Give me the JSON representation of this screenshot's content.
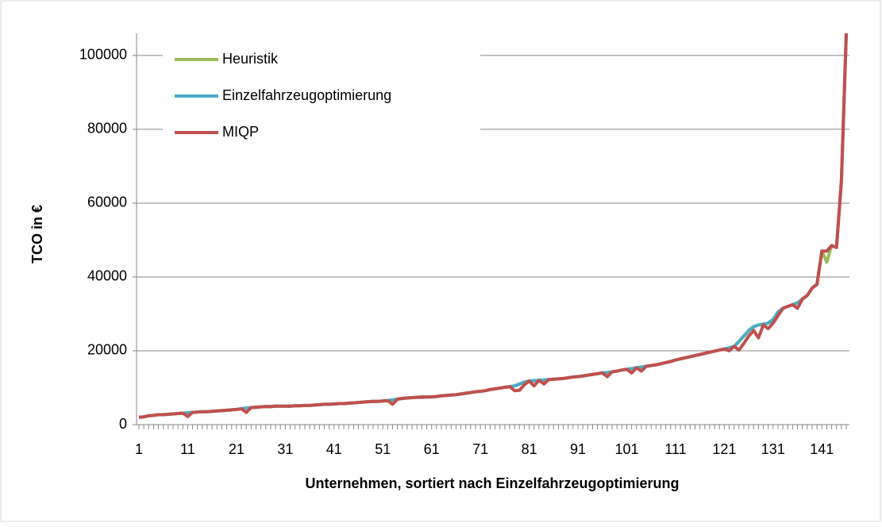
{
  "chart_data": {
    "type": "line",
    "y_label": "TCO in €",
    "x_label": "Unternehmen, sortiert nach Einzelfahrzeugoptimierung",
    "categories": [
      "1",
      null,
      null,
      null,
      null,
      null,
      null,
      null,
      null,
      null,
      "11",
      null,
      null,
      null,
      null,
      null,
      null,
      null,
      null,
      null,
      "21",
      null,
      null,
      null,
      null,
      null,
      null,
      null,
      null,
      null,
      "31",
      null,
      null,
      null,
      null,
      null,
      null,
      null,
      null,
      null,
      "41",
      null,
      null,
      null,
      null,
      null,
      null,
      null,
      null,
      null,
      "51",
      null,
      null,
      null,
      null,
      null,
      null,
      null,
      null,
      null,
      "61",
      null,
      null,
      null,
      null,
      null,
      null,
      null,
      null,
      null,
      "71",
      null,
      null,
      null,
      null,
      null,
      null,
      null,
      null,
      null,
      "81",
      null,
      null,
      null,
      null,
      null,
      null,
      null,
      null,
      null,
      "91",
      null,
      null,
      null,
      null,
      null,
      null,
      null,
      null,
      null,
      "101",
      null,
      null,
      null,
      null,
      null,
      null,
      null,
      null,
      null,
      "111",
      null,
      null,
      null,
      null,
      null,
      null,
      null,
      null,
      null,
      "121",
      null,
      null,
      null,
      null,
      null,
      null,
      null,
      null,
      null,
      "131",
      null,
      null,
      null,
      null,
      null,
      null,
      null,
      null,
      null,
      "141",
      null,
      null,
      null,
      null,
      null
    ],
    "series": [
      {
        "name": "Heuristik",
        "color": "#9bbb59",
        "values": [
          2000,
          2100,
          2400,
          2500,
          2700,
          2700,
          2800,
          2900,
          3000,
          3100,
          3200,
          3300,
          3400,
          3500,
          3500,
          3600,
          3700,
          3800,
          3900,
          4000,
          4100,
          4300,
          4500,
          4600,
          4700,
          4800,
          4900,
          4900,
          5000,
          5000,
          5000,
          5000,
          5100,
          5100,
          5200,
          5200,
          5300,
          5400,
          5500,
          5500,
          5600,
          5700,
          5700,
          5800,
          5900,
          6000,
          6100,
          6200,
          6300,
          6300,
          6400,
          6500,
          6700,
          6900,
          7100,
          7200,
          7300,
          7400,
          7600,
          7500,
          7500,
          7600,
          7800,
          7900,
          8000,
          8100,
          8300,
          8500,
          8700,
          8900,
          9000,
          9200,
          9500,
          9700,
          9900,
          10100,
          10300,
          10500,
          11000,
          11500,
          11800,
          11900,
          12000,
          12100,
          12200,
          12300,
          12400,
          12500,
          12700,
          12900,
          13000,
          13200,
          13400,
          13600,
          13800,
          14000,
          14100,
          14300,
          14500,
          14800,
          15000,
          15200,
          15400,
          15600,
          15800,
          16000,
          16200,
          16500,
          16800,
          17100,
          17500,
          17800,
          18100,
          18400,
          18700,
          19000,
          19300,
          19600,
          19900,
          20200,
          20500,
          20800,
          21200,
          22500,
          24000,
          25500,
          26500,
          27000,
          27200,
          27500,
          28500,
          30500,
          31500,
          32000,
          32500,
          33000,
          34000,
          35000,
          37000,
          38000,
          47000,
          44000,
          48500,
          48000,
          66000,
          106000
        ]
      },
      {
        "name": "Einzelfahrzeugoptimierung",
        "color": "#4bacc6",
        "values": [
          2000,
          2100,
          2400,
          2500,
          2700,
          2700,
          2800,
          2900,
          3000,
          3100,
          3200,
          3300,
          3400,
          3500,
          3500,
          3600,
          3700,
          3800,
          3900,
          4000,
          4100,
          4300,
          4500,
          4600,
          4700,
          4800,
          4900,
          4900,
          5000,
          5000,
          5000,
          5000,
          5100,
          5100,
          5200,
          5200,
          5300,
          5400,
          5500,
          5500,
          5600,
          5700,
          5700,
          5800,
          5900,
          6000,
          6100,
          6200,
          6300,
          6300,
          6400,
          6500,
          6700,
          6900,
          7100,
          7200,
          7300,
          7400,
          7400,
          7500,
          7500,
          7600,
          7800,
          7900,
          8000,
          8100,
          8300,
          8500,
          8700,
          8900,
          9000,
          9200,
          9500,
          9700,
          9900,
          10100,
          10300,
          10500,
          11000,
          11500,
          11800,
          11900,
          12000,
          12100,
          12200,
          12300,
          12400,
          12500,
          12700,
          12900,
          13000,
          13200,
          13400,
          13600,
          13800,
          14000,
          14100,
          14300,
          14500,
          14800,
          15000,
          15200,
          15400,
          15600,
          15800,
          16000,
          16200,
          16500,
          16800,
          17100,
          17500,
          17800,
          18100,
          18400,
          18700,
          19000,
          19300,
          19600,
          19900,
          20200,
          20500,
          20800,
          21200,
          22500,
          24000,
          25500,
          26500,
          27000,
          27200,
          27500,
          28500,
          30500,
          31500,
          32000,
          32500,
          33000,
          34000,
          35000,
          37000,
          38000,
          47000,
          47000,
          48500,
          48000,
          66000,
          106000
        ]
      },
      {
        "name": "MIQP",
        "color": "#c0504d",
        "values": [
          2000,
          2100,
          2400,
          2500,
          2700,
          2700,
          2800,
          2900,
          3000,
          3100,
          2200,
          3300,
          3400,
          3500,
          3500,
          3600,
          3700,
          3800,
          3900,
          4000,
          4100,
          4300,
          3300,
          4600,
          4700,
          4800,
          4900,
          4900,
          5000,
          5000,
          5000,
          5000,
          5100,
          5100,
          5200,
          5200,
          5300,
          5400,
          5500,
          5500,
          5600,
          5700,
          5700,
          5800,
          5900,
          6000,
          6100,
          6200,
          6300,
          6300,
          6400,
          6500,
          5500,
          6900,
          7100,
          7200,
          7300,
          7400,
          7400,
          7500,
          7500,
          7600,
          7800,
          7900,
          8000,
          8100,
          8300,
          8500,
          8700,
          8900,
          9000,
          9200,
          9500,
          9700,
          9900,
          10100,
          10300,
          9200,
          9300,
          10800,
          11800,
          10500,
          12000,
          11000,
          12200,
          12300,
          12400,
          12500,
          12700,
          12900,
          13000,
          13200,
          13400,
          13600,
          13800,
          14000,
          13000,
          14300,
          14500,
          14800,
          15000,
          14000,
          15400,
          14500,
          15800,
          16000,
          16200,
          16500,
          16800,
          17100,
          17500,
          17800,
          18100,
          18400,
          18700,
          19000,
          19300,
          19600,
          19900,
          20200,
          20500,
          20000,
          21200,
          20200,
          22000,
          24000,
          25500,
          23500,
          27000,
          26000,
          27500,
          29500,
          31500,
          32000,
          32500,
          31500,
          34000,
          35000,
          37000,
          38000,
          47000,
          47000,
          48500,
          48000,
          66000,
          106000
        ]
      }
    ],
    "ylim": [
      0,
      106000
    ],
    "yticks": [
      0,
      20000,
      40000,
      60000,
      80000,
      100000
    ],
    "grid": true,
    "legend": "upper left"
  }
}
